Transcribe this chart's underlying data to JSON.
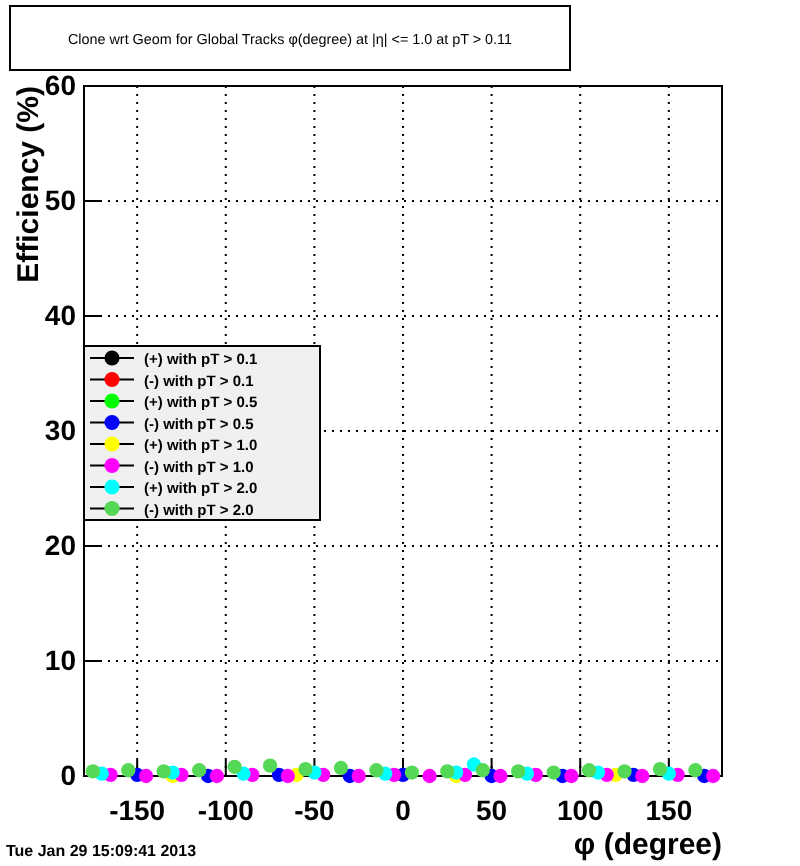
{
  "chart_data": {
    "type": "scatter",
    "title": "Clone wrt Geom for Global Tracks φ(degree) at |η| <= 1.0 at pT > 0.11",
    "xlabel": "φ (degree)",
    "ylabel": "Efficiency (%)",
    "annotations": [
      "Tue Jan 29 15:09:41 2013"
    ],
    "xlim": [
      -180,
      180
    ],
    "xticks": [
      -150,
      -100,
      -50,
      0,
      50,
      100,
      150
    ],
    "ylim": [
      0,
      60
    ],
    "yticks": [
      0,
      10,
      20,
      30,
      40,
      50,
      60
    ],
    "grid": true,
    "legend": "left",
    "marker": "circle",
    "series": [
      {
        "name": "(+) with pT > 0.1",
        "color": "#000000"
      },
      {
        "name": "(-) with pT > 0.1",
        "color": "#ff0000"
      },
      {
        "name": "(+) with pT > 0.5",
        "color": "#00ff00"
      },
      {
        "name": "(-) with pT > 0.5",
        "color": "#0000ff",
        "x": [
          -150,
          -110,
          -70,
          -30,
          0,
          50,
          90,
          130,
          170
        ],
        "values": [
          0.1,
          0,
          0.1,
          0,
          0.1,
          0,
          0,
          0.1,
          0
        ]
      },
      {
        "name": "(+) with pT > 1.0",
        "color": "#ffff00",
        "x": [
          -130,
          -60,
          30,
          120
        ],
        "values": [
          0,
          0.1,
          0,
          0.1
        ]
      },
      {
        "name": "(-) with pT > 1.0",
        "color": "#ff00ff",
        "x": [
          -165,
          -145,
          -125,
          -105,
          -85,
          -65,
          -45,
          -25,
          -5,
          15,
          35,
          55,
          75,
          95,
          115,
          135,
          155,
          175
        ],
        "values": [
          0.1,
          0,
          0.1,
          0,
          0.1,
          0,
          0.1,
          0,
          0.1,
          0,
          0.1,
          0,
          0.1,
          0,
          0.1,
          0,
          0.1,
          0
        ]
      },
      {
        "name": "(+) with pT > 2.0",
        "color": "#00ffff",
        "x": [
          -170,
          -130,
          -90,
          -50,
          -10,
          30,
          40,
          70,
          110,
          150
        ],
        "values": [
          0.2,
          0.3,
          0.2,
          0.3,
          0.2,
          0.3,
          1.0,
          0.2,
          0.3,
          0.2
        ]
      },
      {
        "name": "(-) with pT > 2.0",
        "color": "#55d855",
        "x": [
          -175,
          -155,
          -135,
          -115,
          -95,
          -75,
          -55,
          -35,
          -15,
          5,
          25,
          45,
          65,
          85,
          105,
          125,
          145,
          165
        ],
        "values": [
          0.4,
          0.5,
          0.4,
          0.5,
          0.8,
          0.9,
          0.6,
          0.7,
          0.5,
          0.3,
          0.4,
          0.5,
          0.4,
          0.3,
          0.5,
          0.4,
          0.6,
          0.5
        ]
      }
    ]
  }
}
